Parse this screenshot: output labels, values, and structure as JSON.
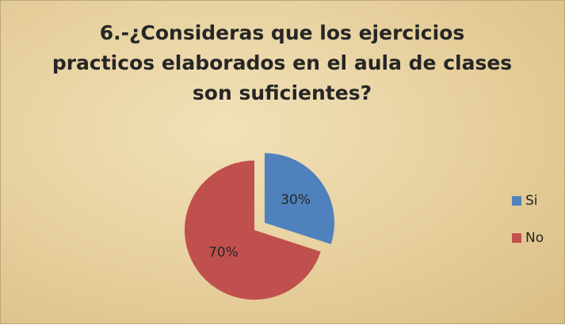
{
  "chart_data": {
    "type": "pie",
    "title": "6.-¿Consideras que los ejercicios practicos elaborados en el aula de clases son suficientes?",
    "categories": [
      "Si",
      "No"
    ],
    "values": [
      30,
      70
    ],
    "value_labels": [
      "30%",
      "70%"
    ],
    "colors": [
      "#4f81bd",
      "#c0504d"
    ],
    "legend": "right"
  }
}
